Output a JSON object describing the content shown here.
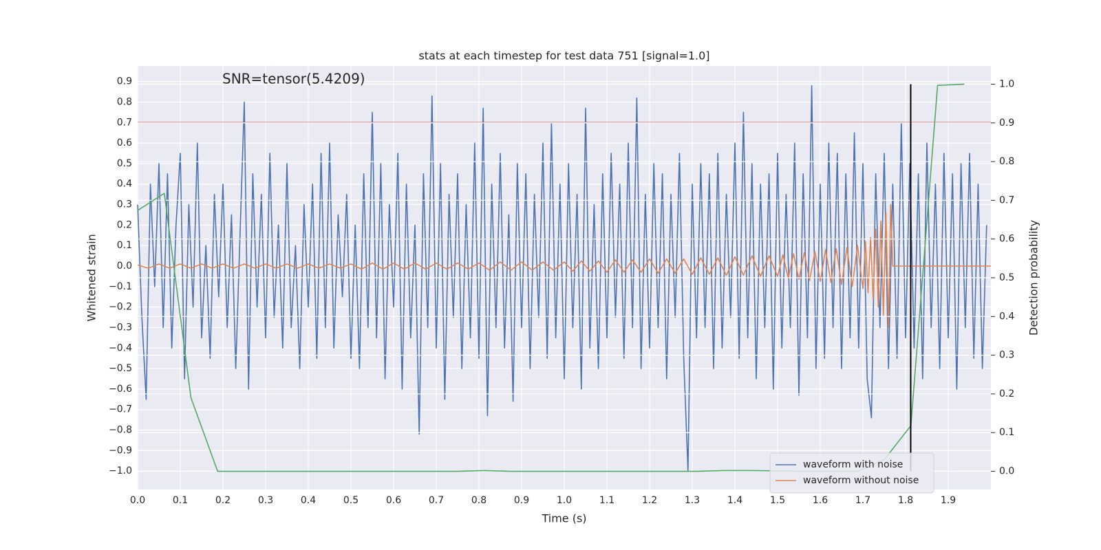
{
  "chart_data": {
    "type": "line",
    "title": "stats at each timestep for test data 751 [signal=1.0]",
    "annotation": "SNR=tensor(5.4209)",
    "xlabel": "Time (s)",
    "ylabel": "Whitened strain",
    "y2label": "Detection probability",
    "xlim": [
      0,
      2.0
    ],
    "ylim": [
      -1.09,
      0.976
    ],
    "y2lim": [
      -0.047,
      1.047
    ],
    "xticks": [
      {
        "value": 0,
        "label": "0.0"
      },
      0.1,
      0.2,
      0.3,
      0.4,
      0.5,
      0.6,
      0.7,
      0.8,
      0.9,
      {
        "value": 1,
        "label": "1.0"
      },
      1.1,
      1.2,
      1.3,
      1.4,
      1.5,
      1.6,
      1.7,
      1.8,
      1.9
    ],
    "yticks": [
      0.9,
      0.8,
      0.7,
      0.6,
      0.5,
      0.4,
      0.3,
      0.2,
      0.1,
      {
        "value": 0,
        "label": "0.0"
      },
      {
        "value": -0.1,
        "label": "−0.1"
      },
      {
        "value": -0.2,
        "label": "−0.2"
      },
      {
        "value": -0.3,
        "label": "−0.3"
      },
      {
        "value": -0.4,
        "label": "−0.4"
      },
      {
        "value": -0.5,
        "label": "−0.5"
      },
      {
        "value": -0.6,
        "label": "−0.6"
      },
      {
        "value": -0.7,
        "label": "−0.7"
      },
      {
        "value": -0.8,
        "label": "−0.8"
      },
      {
        "value": -0.9,
        "label": "−0.9"
      },
      {
        "value": -1.0,
        "label": "−1.0"
      }
    ],
    "y2ticks": [
      {
        "value": 0,
        "label": "0.0"
      },
      0.1,
      0.2,
      0.3,
      0.4,
      0.5,
      0.6,
      0.7,
      0.8,
      0.9,
      {
        "value": 1,
        "label": "1.0"
      }
    ],
    "grid": true,
    "legend": "lower right",
    "threshold": 0.7,
    "threshold_color": "#c44e52",
    "marker_x": 1.812,
    "marker_color": "#000000",
    "series": [
      {
        "name": "waveform with noise",
        "color": "#4c72b0",
        "x": [
          0,
          0.01,
          0.02,
          0.03,
          0.04,
          0.05,
          0.06,
          0.07,
          0.08,
          0.09,
          0.1,
          0.11,
          0.12,
          0.13,
          0.14,
          0.15,
          0.16,
          0.17,
          0.18,
          0.19,
          0.2,
          0.21,
          0.22,
          0.23,
          0.24,
          0.25,
          0.26,
          0.27,
          0.28,
          0.29,
          0.3,
          0.31,
          0.32,
          0.33,
          0.34,
          0.35,
          0.36,
          0.37,
          0.38,
          0.39,
          0.4,
          0.41,
          0.42,
          0.43,
          0.44,
          0.45,
          0.46,
          0.47,
          0.48,
          0.49,
          0.5,
          0.51,
          0.52,
          0.53,
          0.54,
          0.55,
          0.56,
          0.57,
          0.58,
          0.59,
          0.6,
          0.61,
          0.62,
          0.63,
          0.64,
          0.65,
          0.66,
          0.67,
          0.68,
          0.69,
          0.7,
          0.71,
          0.72,
          0.73,
          0.74,
          0.75,
          0.76,
          0.77,
          0.78,
          0.79,
          0.8,
          0.81,
          0.82,
          0.83,
          0.84,
          0.85,
          0.86,
          0.87,
          0.88,
          0.89,
          0.9,
          0.91,
          0.92,
          0.93,
          0.94,
          0.95,
          0.96,
          0.97,
          0.98,
          0.99,
          1.0,
          1.01,
          1.02,
          1.03,
          1.04,
          1.05,
          1.06,
          1.07,
          1.08,
          1.09,
          1.1,
          1.11,
          1.12,
          1.13,
          1.14,
          1.15,
          1.16,
          1.17,
          1.18,
          1.19,
          1.2,
          1.21,
          1.22,
          1.23,
          1.24,
          1.25,
          1.26,
          1.27,
          1.28,
          1.29,
          1.3,
          1.31,
          1.32,
          1.33,
          1.34,
          1.35,
          1.36,
          1.37,
          1.38,
          1.39,
          1.4,
          1.41,
          1.42,
          1.43,
          1.44,
          1.45,
          1.46,
          1.47,
          1.48,
          1.49,
          1.5,
          1.51,
          1.52,
          1.53,
          1.54,
          1.55,
          1.56,
          1.57,
          1.58,
          1.59,
          1.6,
          1.61,
          1.62,
          1.63,
          1.64,
          1.65,
          1.66,
          1.67,
          1.68,
          1.69,
          1.7,
          1.71,
          1.72,
          1.73,
          1.74,
          1.75,
          1.76,
          1.77,
          1.78,
          1.79,
          1.8,
          1.81,
          1.82,
          1.83,
          1.84,
          1.85,
          1.86,
          1.87,
          1.88,
          1.89,
          1.9,
          1.91,
          1.92,
          1.93,
          1.94,
          1.95,
          1.96,
          1.97,
          1.98,
          1.99
        ],
        "values": [
          0.3,
          -0.25,
          -0.65,
          0.4,
          -0.1,
          0.5,
          -0.3,
          0.45,
          -0.4,
          0.2,
          0.55,
          -0.55,
          0.3,
          -0.2,
          0.6,
          -0.35,
          0.1,
          -0.45,
          0.35,
          -0.15,
          0.4,
          -0.3,
          0.25,
          -0.5,
          0.15,
          0.8,
          -0.6,
          0.45,
          -0.2,
          0.35,
          -0.35,
          0.55,
          -0.25,
          0.2,
          -0.4,
          0.5,
          -0.3,
          0.1,
          -0.5,
          0.3,
          -0.2,
          0.4,
          -0.45,
          0.55,
          -0.3,
          0.6,
          -0.4,
          0.25,
          -0.15,
          0.35,
          -0.45,
          0.2,
          -0.5,
          0.45,
          -0.3,
          0.75,
          -0.35,
          0.5,
          -0.55,
          0.3,
          -0.2,
          0.55,
          -0.6,
          0.4,
          -0.35,
          0.2,
          -0.82,
          0.45,
          -0.3,
          0.83,
          -0.4,
          0.5,
          -0.65,
          0.35,
          -0.25,
          0.45,
          -0.5,
          0.3,
          -0.35,
          0.6,
          -0.45,
          0.77,
          -0.73,
          0.4,
          -0.3,
          0.55,
          -0.4,
          0.25,
          -0.66,
          0.5,
          -0.3,
          0.45,
          -0.5,
          0.35,
          -0.25,
          0.6,
          -0.45,
          0.7,
          -0.35,
          0.4,
          -0.55,
          0.5,
          -0.3,
          0.35,
          -0.6,
          0.77,
          -0.4,
          0.3,
          -0.5,
          0.45,
          -0.35,
          0.55,
          -0.25,
          0.4,
          -0.45,
          0.6,
          -0.3,
          0.82,
          -0.5,
          0.35,
          -0.4,
          0.5,
          -0.3,
          0.45,
          -0.55,
          0.35,
          -0.25,
          0.55,
          -0.45,
          -1.0,
          0.4,
          -0.35,
          0.5,
          -0.3,
          0.45,
          -0.5,
          0.55,
          -0.4,
          0.35,
          -0.25,
          0.6,
          -0.45,
          0.75,
          -0.35,
          0.5,
          -0.55,
          0.4,
          -0.3,
          0.45,
          -0.6,
          0.55,
          -0.4,
          0.35,
          -0.3,
          0.6,
          -0.63,
          0.45,
          -0.35,
          0.88,
          -0.5,
          0.4,
          -0.45,
          0.6,
          -0.3,
          0.55,
          -0.5,
          0.45,
          -0.35,
          0.65,
          -0.4,
          0.5,
          -0.55,
          -0.74,
          0.45,
          -0.3,
          0.55,
          -0.5,
          0.4,
          -0.45,
          0.7,
          -0.35,
          0.5,
          -0.4,
          0.45,
          -0.55,
          0.6,
          -0.3,
          0.4,
          -0.5,
          0.55,
          -0.35,
          0.45,
          -0.6,
          0.5,
          -0.3,
          0.55,
          -0.45,
          0.4,
          -0.5,
          0.2
        ]
      },
      {
        "name": "waveform without noise",
        "color": "#dd8452",
        "x": [
          0,
          0.025,
          0.05,
          0.075,
          0.1,
          0.125,
          0.15,
          0.175,
          0.2,
          0.225,
          0.25,
          0.275,
          0.3,
          0.325,
          0.35,
          0.375,
          0.4,
          0.425,
          0.45,
          0.475,
          0.5,
          0.525,
          0.55,
          0.575,
          0.6,
          0.625,
          0.65,
          0.675,
          0.7,
          0.725,
          0.75,
          0.775,
          0.8,
          0.825,
          0.85,
          0.875,
          0.9,
          0.925,
          0.95,
          0.975,
          1.0,
          1.02,
          1.04,
          1.06,
          1.08,
          1.1,
          1.12,
          1.14,
          1.16,
          1.18,
          1.2,
          1.22,
          1.24,
          1.26,
          1.28,
          1.3,
          1.32,
          1.34,
          1.36,
          1.38,
          1.4,
          1.42,
          1.44,
          1.46,
          1.48,
          1.5,
          1.5125,
          1.525,
          1.5375,
          1.55,
          1.5625,
          1.575,
          1.5875,
          1.6,
          1.6125,
          1.625,
          1.6375,
          1.65,
          1.6625,
          1.675,
          1.6875,
          1.7,
          1.706,
          1.712,
          1.718,
          1.724,
          1.73,
          1.736,
          1.742,
          1.748,
          1.754,
          1.76,
          1.765,
          1.77,
          2.0
        ],
        "values": [
          0.005,
          -0.01,
          0.01,
          -0.01,
          0.01,
          -0.01,
          0.01,
          -0.01,
          0.01,
          -0.01,
          0.01,
          -0.01,
          0.01,
          -0.01,
          0.01,
          -0.01,
          0.01,
          -0.01,
          0.01,
          -0.01,
          0.01,
          -0.015,
          0.015,
          -0.015,
          0.015,
          -0.015,
          0.015,
          -0.015,
          0.015,
          -0.015,
          0.015,
          -0.015,
          0.015,
          -0.02,
          0.02,
          -0.02,
          0.02,
          -0.02,
          0.02,
          -0.02,
          0.02,
          -0.025,
          0.025,
          -0.025,
          0.025,
          -0.03,
          0.03,
          -0.03,
          0.03,
          -0.03,
          0.035,
          -0.035,
          0.035,
          -0.035,
          0.035,
          -0.04,
          0.04,
          -0.04,
          0.04,
          -0.045,
          0.045,
          -0.045,
          0.05,
          -0.05,
          0.05,
          -0.05,
          0.055,
          -0.06,
          0.06,
          -0.065,
          0.065,
          -0.07,
          0.07,
          -0.075,
          0.08,
          -0.08,
          0.085,
          -0.09,
          0.09,
          -0.1,
          0.1,
          -0.11,
          0.12,
          -0.13,
          0.14,
          -0.16,
          0.18,
          -0.2,
          0.22,
          -0.24,
          0.26,
          -0.3,
          0.3,
          0,
          0
        ]
      },
      {
        "color": "#55a868",
        "axis": "y2",
        "x": [
          0,
          0.0625,
          0.125,
          0.1875,
          0.25,
          0.3125,
          0.375,
          0.4375,
          0.5,
          0.5625,
          0.625,
          0.6875,
          0.75,
          0.8125,
          0.875,
          0.9375,
          1.0,
          1.0625,
          1.125,
          1.1875,
          1.25,
          1.3125,
          1.375,
          1.4375,
          1.5,
          1.5625,
          1.625,
          1.6875,
          1.75,
          1.8125,
          1.875,
          1.9375
        ],
        "values": [
          0.674,
          0.718,
          0.19,
          0,
          0,
          0,
          0,
          0,
          0,
          0,
          0,
          0,
          0,
          0.002,
          0,
          0,
          0,
          0,
          0,
          0,
          0,
          0,
          0.002,
          0.002,
          0.001,
          0,
          0,
          0,
          0.03,
          0.118,
          0.997,
          1.0
        ]
      }
    ]
  }
}
